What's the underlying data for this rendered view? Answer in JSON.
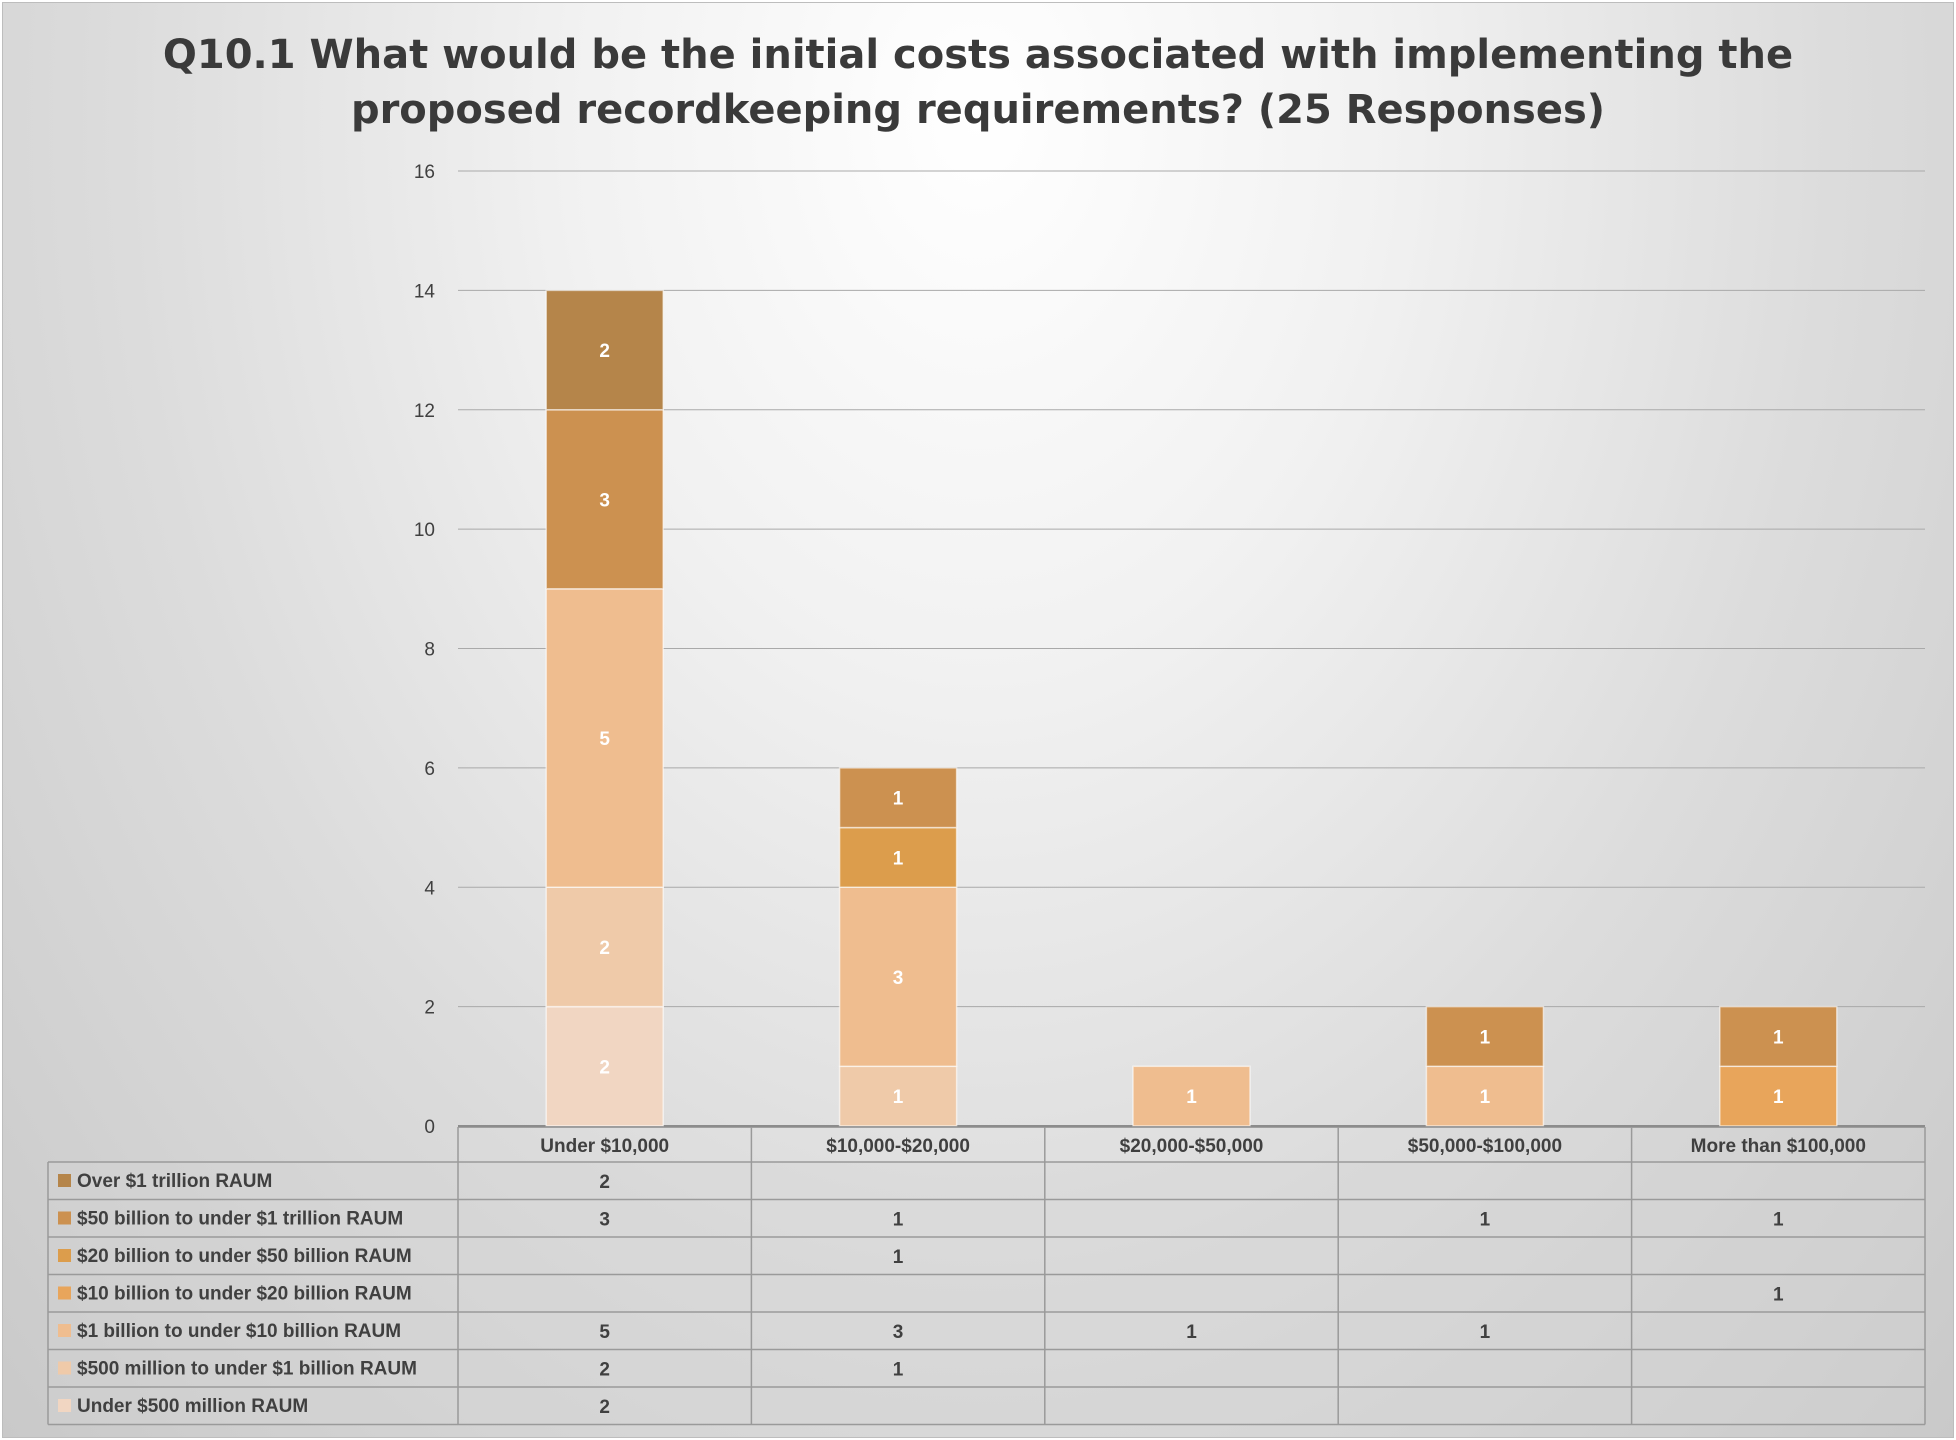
{
  "chart_data": {
    "type": "bar",
    "stacked": true,
    "title": "Q10.1 What would be the initial costs associated with implementing the proposed recordkeeping requirements? (25 Responses)",
    "title_lines": [
      "Q10.1 What would be the initial costs associated with implementing the",
      "proposed recordkeeping requirements? (25 Responses)"
    ],
    "categories": [
      "Under $10,000",
      "$10,000-$20,000",
      "$20,000-$50,000",
      "$50,000-$100,000",
      "More than $100,000"
    ],
    "ylim": [
      0,
      16
    ],
    "yticks": [
      "0",
      "2",
      "4",
      "6",
      "8",
      "10",
      "12",
      "14",
      "16"
    ],
    "grid": true,
    "legend": "data-table",
    "series": [
      {
        "name": "Under $500 million RAUM",
        "color": "#f1d6c2",
        "values": [
          2,
          null,
          null,
          null,
          null
        ]
      },
      {
        "name": "$500 million to under $1 billion RAUM",
        "color": "#efcaa9",
        "values": [
          2,
          1,
          null,
          null,
          null
        ]
      },
      {
        "name": "$1 billion to under $10 billion RAUM",
        "color": "#efbd8f",
        "values": [
          5,
          3,
          1,
          1,
          null
        ]
      },
      {
        "name": "$10 billion to under $20 billion RAUM",
        "color": "#e8a55b",
        "values": [
          null,
          null,
          null,
          null,
          1
        ]
      },
      {
        "name": "$20 billion to under $50 billion RAUM",
        "color": "#dc9d4c",
        "values": [
          null,
          1,
          null,
          null,
          null
        ]
      },
      {
        "name": "$50 billion to under $1 trillion RAUM",
        "color": "#cc9150",
        "values": [
          3,
          1,
          null,
          1,
          1
        ]
      },
      {
        "name": "Over $1 trillion RAUM",
        "color": "#b5854a",
        "values": [
          2,
          null,
          null,
          null,
          null
        ]
      }
    ]
  }
}
